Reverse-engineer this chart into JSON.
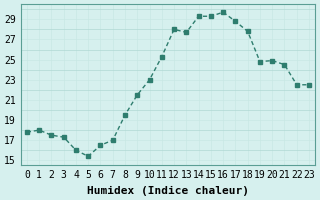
{
  "x": [
    0,
    1,
    2,
    3,
    4,
    5,
    6,
    7,
    8,
    9,
    10,
    11,
    12,
    13,
    14,
    15,
    16,
    17,
    18,
    19,
    20,
    21,
    22,
    23
  ],
  "y": [
    17.8,
    18.0,
    17.5,
    17.3,
    16.0,
    15.4,
    16.5,
    17.0,
    19.5,
    21.5,
    23.0,
    25.3,
    28.0,
    27.7,
    29.3,
    29.3,
    29.7,
    28.8,
    27.8,
    24.8,
    24.9,
    24.5,
    22.5,
    22.5
  ],
  "line_color": "#2e7d6e",
  "marker": "s",
  "marker_size": 3,
  "bg_color": "#d6f0ee",
  "grid_color": "#b0d8d4",
  "grid_major_color": "#c8e8e4",
  "xlabel": "Humidex (Indice chaleur)",
  "ylabel": "",
  "title": "",
  "xlim": [
    -0.5,
    23.5
  ],
  "ylim": [
    14.5,
    30.5
  ],
  "yticks": [
    15,
    17,
    19,
    21,
    23,
    25,
    27,
    29
  ],
  "xticks": [
    0,
    1,
    2,
    3,
    4,
    5,
    6,
    7,
    8,
    9,
    10,
    11,
    12,
    13,
    14,
    15,
    16,
    17,
    18,
    19,
    20,
    21,
    22,
    23
  ],
  "xlabel_fontsize": 8,
  "tick_fontsize": 7
}
